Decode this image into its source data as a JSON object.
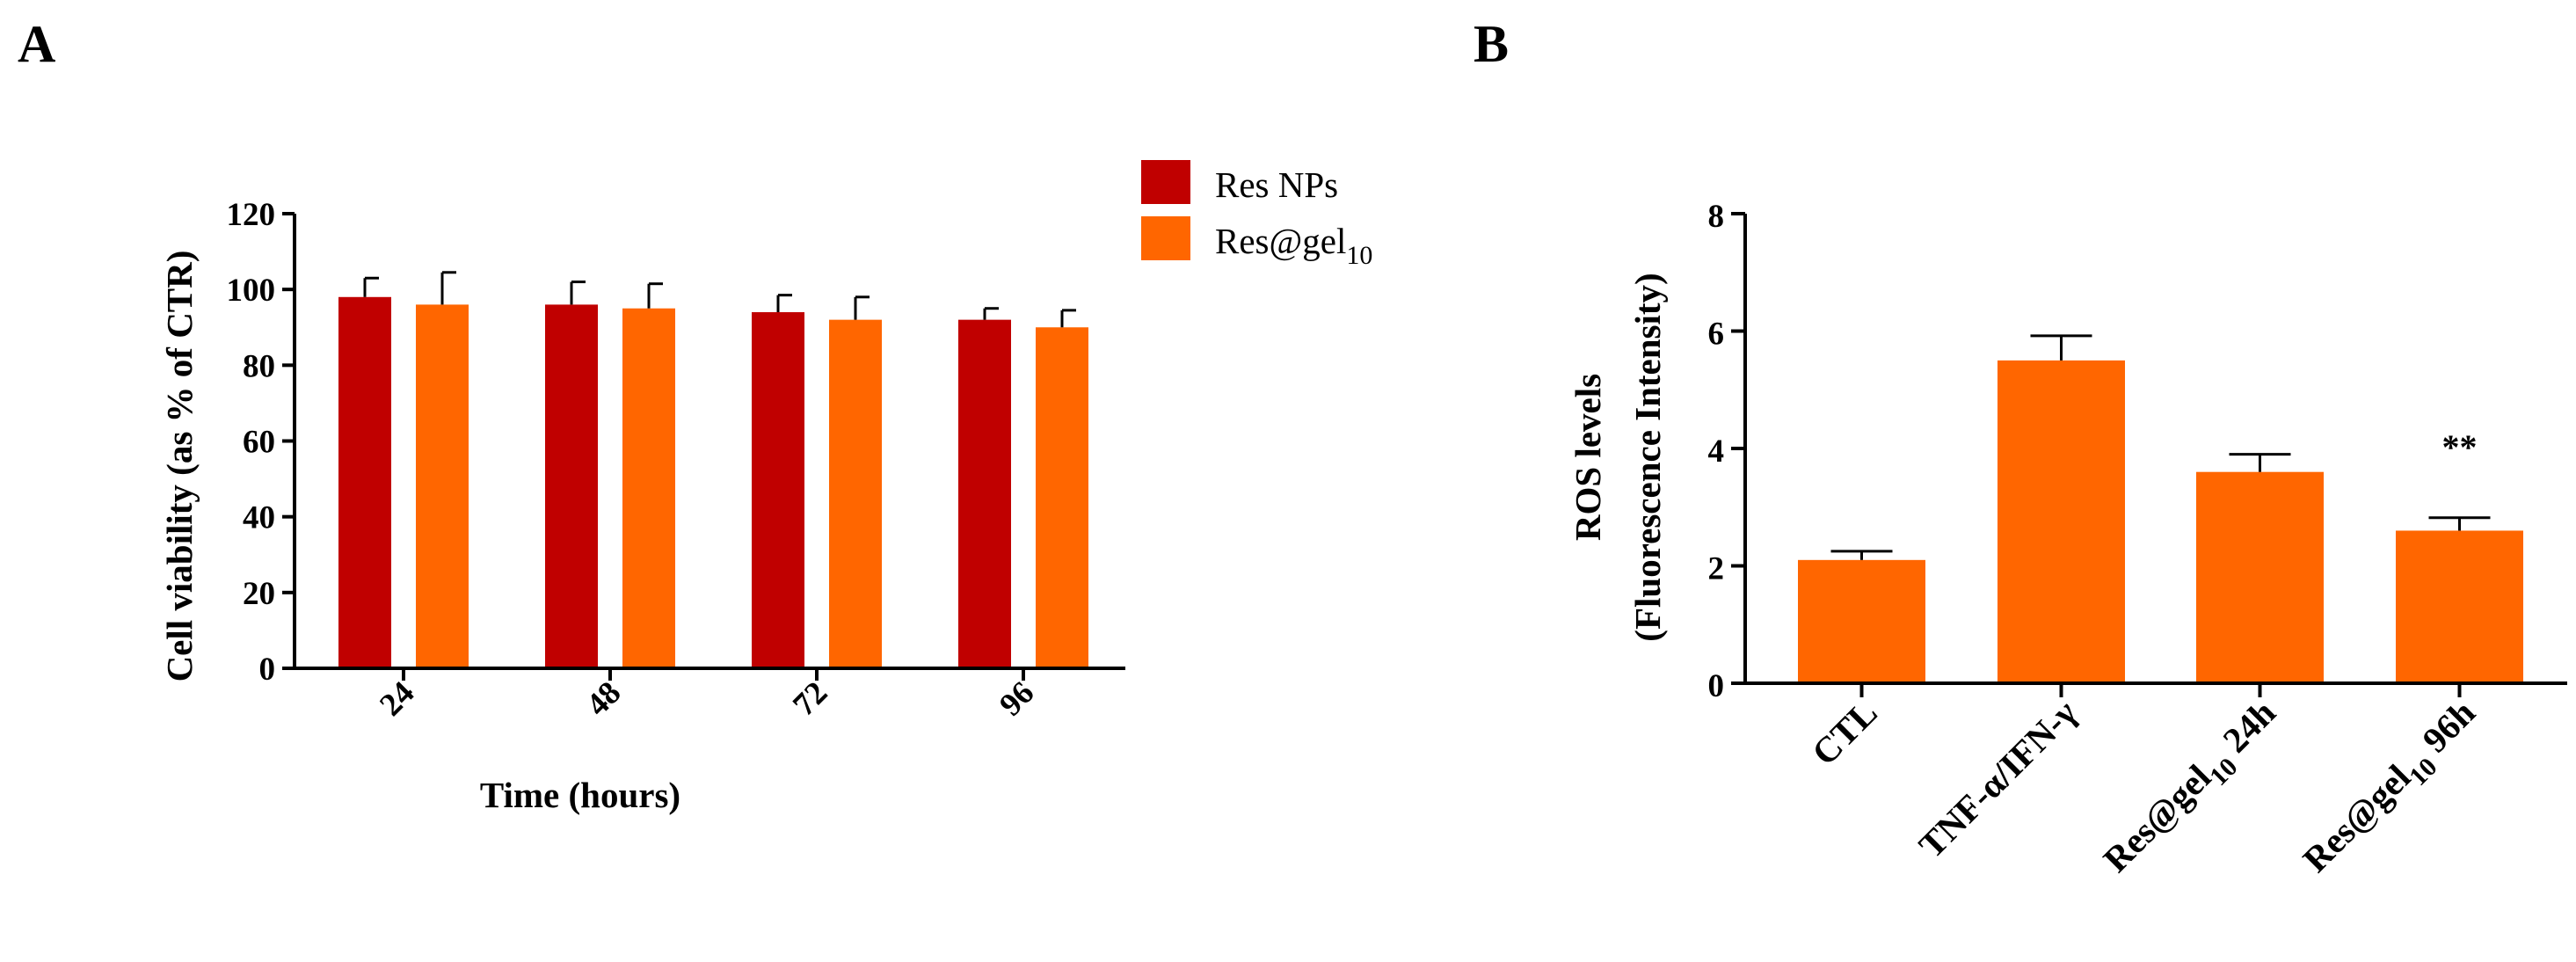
{
  "panels": {
    "a": "A",
    "b": "B"
  },
  "colors": {
    "res_nps": "#c00000",
    "res_gel": "#ff6600",
    "bar_b": "#ff6600",
    "axis": "#000000"
  },
  "chart_data": [
    {
      "type": "bar",
      "panel": "A",
      "title": "",
      "xlabel": "Time (hours)",
      "ylabel": "Cell viability (as % of CTR)",
      "categories": [
        "24",
        "48",
        "72",
        "96"
      ],
      "ylim": [
        0,
        120
      ],
      "yticks": [
        0,
        20,
        40,
        60,
        80,
        100,
        120
      ],
      "legend_position": "top-right",
      "series": [
        {
          "name": "Res NPs",
          "legend_base": "Res NPs",
          "legend_sub": "",
          "color": "#c00000",
          "values": [
            98,
            96,
            94,
            92
          ],
          "errors": [
            5,
            6,
            4.5,
            3
          ]
        },
        {
          "name": "Res@gel10",
          "legend_base": "Res@gel",
          "legend_sub": "10",
          "color": "#ff6600",
          "values": [
            96,
            95,
            92,
            90
          ],
          "errors": [
            8.5,
            6.5,
            6,
            4.5
          ]
        }
      ]
    },
    {
      "type": "bar",
      "panel": "B",
      "title": "",
      "xlabel": "",
      "ylabel": "ROS levels",
      "ylabel2": "(Fluorescence Intensity)",
      "categories": [
        "CTL",
        "TNF-α/IFN-γ",
        "Res@gel10 24h",
        "Res@gel10 96h"
      ],
      "category_parts": [
        {
          "base": "CTL",
          "sub": "",
          "suffix": ""
        },
        {
          "base": "TNF-α/IFN-γ",
          "sub": "",
          "suffix": ""
        },
        {
          "base": "Res@gel",
          "sub": "10",
          "suffix": " 24h"
        },
        {
          "base": "Res@gel",
          "sub": "10",
          "suffix": " 96h"
        }
      ],
      "ylim": [
        0,
        8
      ],
      "yticks": [
        0,
        2,
        4,
        6,
        8
      ],
      "values": [
        2.1,
        5.5,
        3.6,
        2.6
      ],
      "errors": [
        0.15,
        0.42,
        0.3,
        0.22
      ],
      "annotations": [
        {
          "category": "Res@gel10 96h",
          "text": "**",
          "y": 4.3
        }
      ]
    }
  ]
}
